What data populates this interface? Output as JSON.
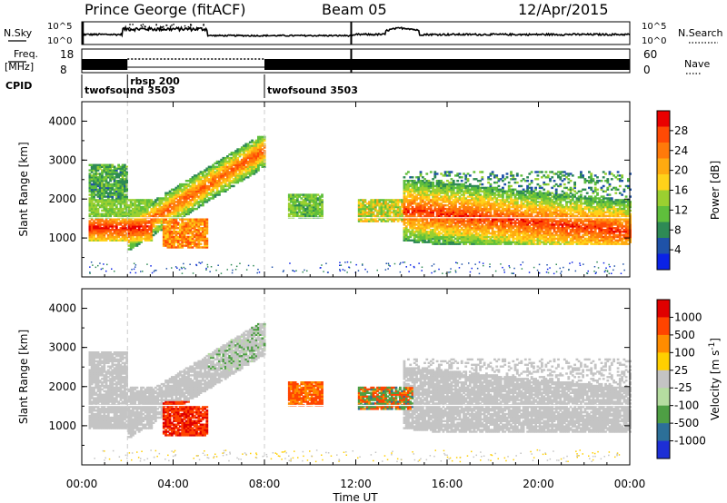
{
  "header": {
    "station": "Prince George (fitACF)",
    "beam": "Beam 05",
    "date": "12/Apr/2015"
  },
  "strip_labels": {
    "nsky": "N.Sky",
    "nsearch": "N.Search",
    "freq_line1": "Freq.",
    "freq_line2": "[MHz]",
    "nave": "Nave",
    "cpid": "CPID",
    "nsky_ticks": [
      "10^5",
      "10^0"
    ],
    "nsearch_ticks": [
      "10^5",
      "10^0"
    ],
    "freq_ticks": [
      "18",
      "8"
    ],
    "nave_ticks": [
      "60",
      "0"
    ]
  },
  "cpid_segments": [
    {
      "label": "twofsound 3503",
      "start_ut": 0.0
    },
    {
      "label": "rbsp 200",
      "start_ut": 2.0
    },
    {
      "label": "twofsound 3503",
      "start_ut": 8.0
    }
  ],
  "chart_data": [
    {
      "type": "heatmap",
      "quantity": "Power",
      "ylabel": "Slant Range [km]",
      "xlim": [
        0,
        24
      ],
      "ylim": [
        0,
        4500
      ],
      "y_ticks": [
        "1000",
        "2000",
        "3000",
        "4000"
      ],
      "colorbar_label": "Power [dB]",
      "colorbar_ticks": [
        "28",
        "24",
        "20",
        "16",
        "12",
        "8",
        "4"
      ],
      "colorbar_range": [
        0,
        32
      ]
    },
    {
      "type": "heatmap",
      "quantity": "Velocity",
      "ylabel": "Slant Range [km]",
      "xlabel": "Time UT",
      "xlim": [
        0,
        24
      ],
      "ylim": [
        0,
        4500
      ],
      "x_ticks": [
        "00:00",
        "04:00",
        "08:00",
        "12:00",
        "16:00",
        "20:00",
        "00:00"
      ],
      "y_ticks": [
        "1000",
        "2000",
        "3000",
        "4000"
      ],
      "colorbar_label": "Velocity [m s",
      "colorbar_label_sup": "-1",
      "colorbar_label_end": "]",
      "colorbar_ticks": [
        "1000",
        "500",
        "100",
        "25",
        "-25",
        "-100",
        "-500",
        "-1000"
      ]
    }
  ],
  "colors": {
    "power_scale": [
      "#0a22e6",
      "#1f52a8",
      "#2e8a55",
      "#5fbf3c",
      "#9bd030",
      "#ffd21a",
      "#ffaa10",
      "#ff7a0a",
      "#ff4a05",
      "#ea0000"
    ],
    "velocity_scale": [
      "#1d2fd6",
      "#2c6f98",
      "#4e9f44",
      "#b5dca0",
      "#c4c4c4",
      "#ffcf00",
      "#ff8c00",
      "#ff4400",
      "#e00000"
    ]
  }
}
